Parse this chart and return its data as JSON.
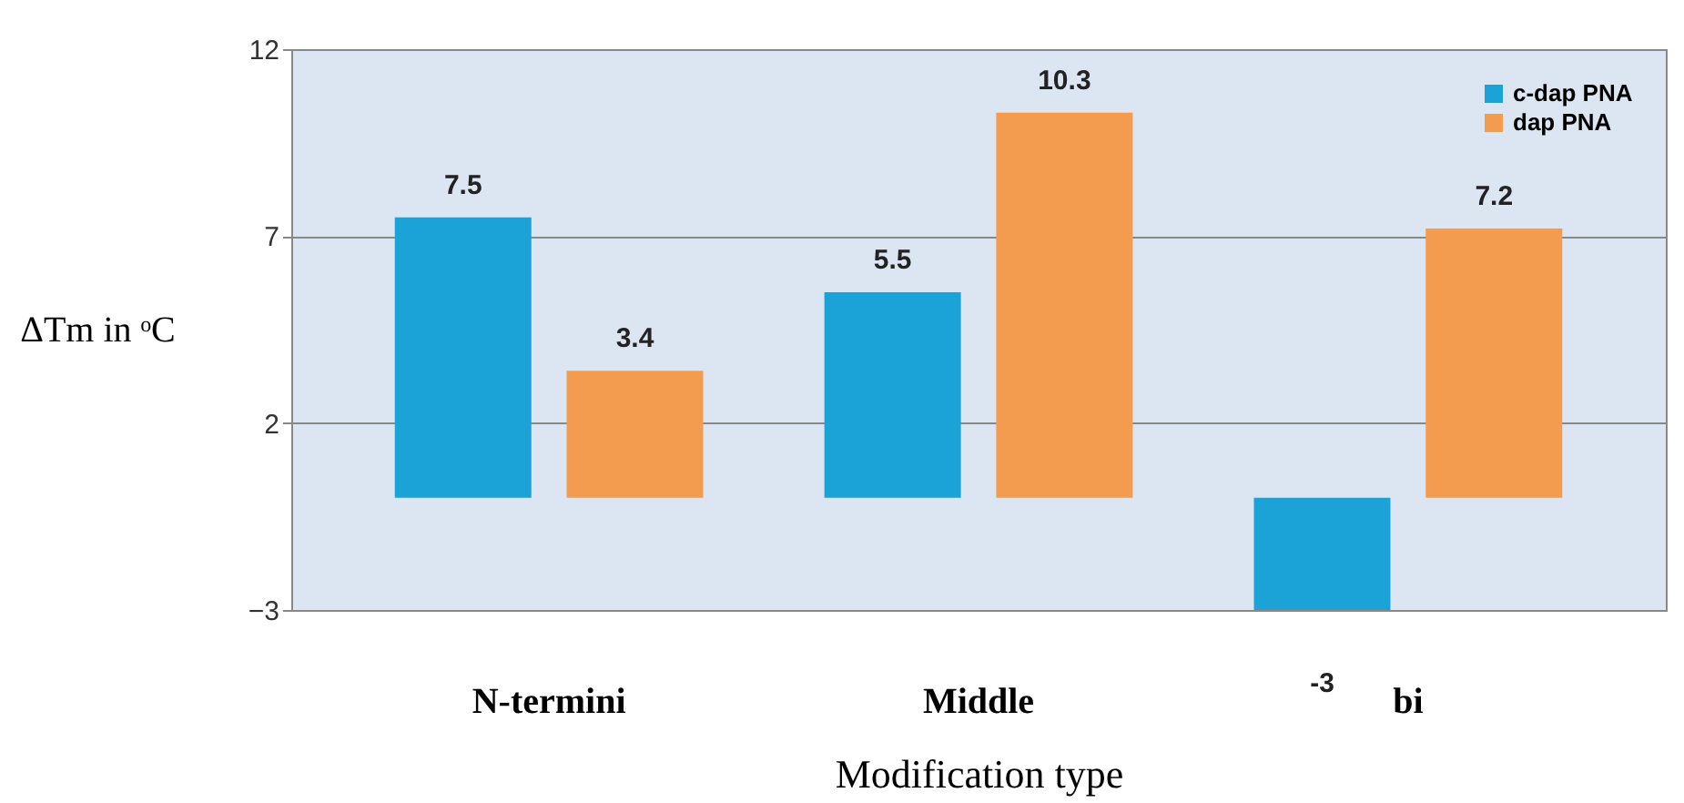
{
  "chart_data": {
    "type": "bar",
    "xlabel": "Modification type",
    "ylabel": "ΔTm in ᵒC",
    "categories": [
      "N-termini",
      "Middle",
      "bi"
    ],
    "series": [
      {
        "name": "c-dap PNA",
        "color": "#1ba3d8",
        "values": [
          7.5,
          5.5,
          -3
        ]
      },
      {
        "name": "dap PNA",
        "color": "#f39c4f",
        "values": [
          3.4,
          10.3,
          7.2
        ]
      }
    ],
    "ylim": [
      -3,
      12
    ],
    "yticks": [
      -3,
      2,
      7,
      12
    ],
    "grid": "y",
    "legend": "top right",
    "data_labels": true
  }
}
